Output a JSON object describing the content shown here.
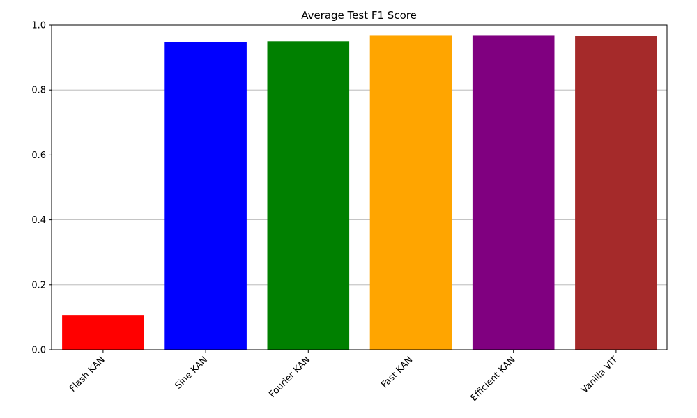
{
  "chart_data": {
    "type": "bar",
    "title": "Average Test F1 Score",
    "xlabel": "",
    "ylabel": "",
    "categories": [
      "Flash KAN",
      "Sine KAN",
      "Fourier KAN",
      "Fast KAN",
      "Efficient KAN",
      "Vanilla VIT"
    ],
    "values": [
      0.107,
      0.948,
      0.95,
      0.969,
      0.969,
      0.967
    ],
    "colors": [
      "#ff0000",
      "#0000ff",
      "#008000",
      "#ffa500",
      "#800080",
      "#a52a2a"
    ],
    "ylim": [
      0,
      1.0
    ],
    "yticks": [
      "0.0",
      "0.2",
      "0.4",
      "0.6",
      "0.8",
      "1.0"
    ],
    "grid": "y-axis"
  }
}
